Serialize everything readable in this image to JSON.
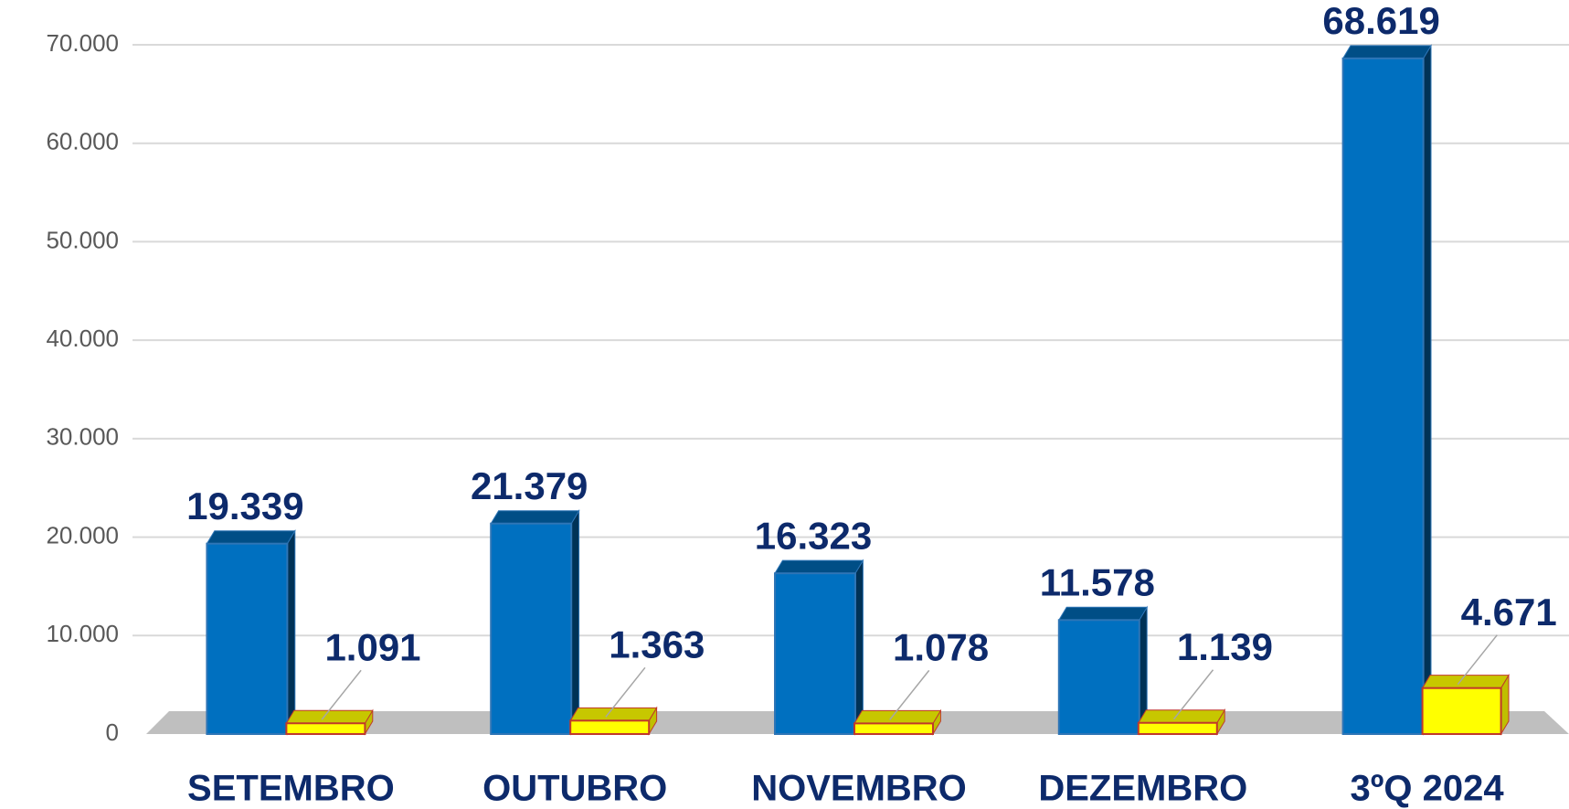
{
  "chart_data": {
    "type": "bar3d",
    "categories": [
      "SETEMBRO",
      "OUTUBRO",
      "NOVEMBRO",
      "DEZEMBRO",
      "3ºQ 2024"
    ],
    "series": [
      {
        "color": "#0070c0",
        "values": [
          19339,
          21379,
          16323,
          11578,
          68619
        ],
        "value_labels": [
          "19.339",
          "21.379",
          "16.323",
          "11.578",
          "68.619"
        ]
      },
      {
        "color": "#ffff00",
        "values": [
          1091,
          1363,
          1078,
          1139,
          4671
        ],
        "value_labels": [
          "1.091",
          "1.363",
          "1.078",
          "1.139",
          "4.671"
        ]
      }
    ],
    "ylim": [
      0,
      70000
    ],
    "yticks": [
      0,
      {
        "value": 10000,
        "label": "10.000"
      },
      {
        "value": 20000,
        "label": "20.000"
      },
      {
        "value": 30000,
        "label": "30.000"
      },
      {
        "value": 40000,
        "label": "40.000"
      },
      {
        "value": 50000,
        "label": "50.000"
      },
      {
        "value": 60000,
        "label": "60.000"
      },
      {
        "value": 70000,
        "label": "70.000"
      }
    ],
    "grid": true
  }
}
